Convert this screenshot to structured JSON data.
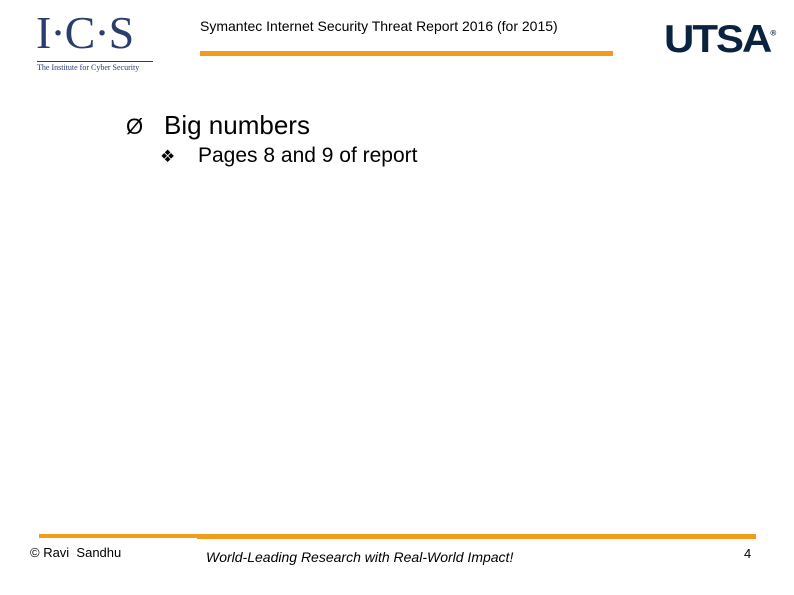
{
  "header": {
    "ics_logo": {
      "letters": "I·C·S",
      "tagline": "The Institute for Cyber Security"
    },
    "title": "Symantec Internet Security Threat Report 2016 (for 2015)",
    "utsa_logo": {
      "text": "UTSA",
      "reg_mark": "®"
    },
    "accent_color": "#f39c1c"
  },
  "body": {
    "bullets": [
      {
        "marker": "Ø",
        "text": "Big numbers"
      },
      {
        "marker": "❖",
        "text": "Pages 8 and 9 of report"
      }
    ]
  },
  "footer": {
    "author": "© Ravi  Sandhu",
    "slogan": "World-Leading Research with Real-World Impact!",
    "page_number": "4"
  }
}
